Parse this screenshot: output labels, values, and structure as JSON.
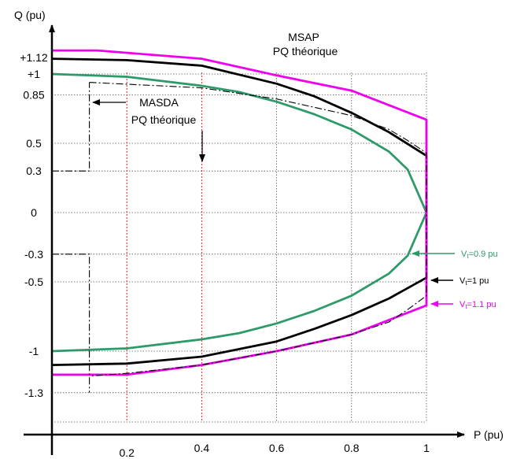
{
  "chart_data": {
    "type": "line",
    "xlabel": "P (pu)",
    "ylabel": "Q (pu)",
    "xlim": [
      0,
      1
    ],
    "ylim": [
      -1.3,
      1.12
    ],
    "x_ticks": [
      {
        "value": 0.2,
        "label": "0.2"
      },
      {
        "value": 0.4,
        "label": "0.4"
      },
      {
        "value": 0.6,
        "label": "0.6"
      },
      {
        "value": 0.8,
        "label": "0.8"
      },
      {
        "value": 1.0,
        "label": "1"
      }
    ],
    "y_ticks": [
      {
        "value": 1.12,
        "label": "+1.12"
      },
      {
        "value": 1.0,
        "label": "+1"
      },
      {
        "value": 0.85,
        "label": "0.85"
      },
      {
        "value": 0.5,
        "label": "0.5"
      },
      {
        "value": 0.3,
        "label": "0.3"
      },
      {
        "value": 0,
        "label": "0"
      },
      {
        "value": -0.3,
        "label": "-0.3"
      },
      {
        "value": -0.5,
        "label": "-0.5"
      },
      {
        "value": -1.0,
        "label": "-1"
      },
      {
        "value": -1.3,
        "label": "-1.3"
      }
    ],
    "grid": "dotted",
    "annotations": {
      "msap_line1": "MSAP",
      "msap_line2": "PQ théorique",
      "masda_line1": "MASDA",
      "masda_line2": "PQ théorique"
    },
    "series": [
      {
        "name": "Vt=0.9 pu",
        "label_text": "V",
        "label_sub": "t",
        "label_rest": "=0.9 pu",
        "color": "#2e9a6a",
        "points": [
          [
            0,
            1.0
          ],
          [
            0.2,
            0.98
          ],
          [
            0.4,
            0.915
          ],
          [
            0.5,
            0.87
          ],
          [
            0.6,
            0.8
          ],
          [
            0.7,
            0.71
          ],
          [
            0.8,
            0.6
          ],
          [
            0.9,
            0.44
          ],
          [
            0.95,
            0.31
          ],
          [
            1.0,
            0
          ],
          [
            0.95,
            -0.31
          ],
          [
            0.9,
            -0.44
          ],
          [
            0.8,
            -0.6
          ],
          [
            0.7,
            -0.71
          ],
          [
            0.6,
            -0.8
          ],
          [
            0.5,
            -0.87
          ],
          [
            0.4,
            -0.915
          ],
          [
            0.2,
            -0.98
          ],
          [
            0,
            -1.0
          ]
        ]
      },
      {
        "name": "Vt=1 pu",
        "label_text": "V",
        "label_sub": "t",
        "label_rest": "=1 pu",
        "color": "#000000",
        "points": [
          [
            0,
            1.11
          ],
          [
            0.2,
            1.1
          ],
          [
            0.4,
            1.06
          ],
          [
            0.6,
            0.93
          ],
          [
            0.7,
            0.84
          ],
          [
            0.8,
            0.72
          ],
          [
            0.9,
            0.58
          ],
          [
            1.0,
            0.41
          ],
          [
            1.0,
            -0.47
          ],
          [
            0.9,
            -0.62
          ],
          [
            0.8,
            -0.74
          ],
          [
            0.7,
            -0.84
          ],
          [
            0.6,
            -0.93
          ],
          [
            0.4,
            -1.04
          ],
          [
            0.2,
            -1.09
          ],
          [
            0,
            -1.1
          ]
        ]
      },
      {
        "name": "Vt=1.1 pu",
        "label_text": "V",
        "label_sub": "t",
        "label_rest": "=1.1 pu",
        "color": "#ee00ee",
        "points": [
          [
            0,
            1.17
          ],
          [
            0.12,
            1.17
          ],
          [
            0.4,
            1.11
          ],
          [
            0.6,
            0.99
          ],
          [
            0.8,
            0.88
          ],
          [
            1.0,
            0.67
          ],
          [
            1.0,
            -0.67
          ],
          [
            0.8,
            -0.88
          ],
          [
            0.6,
            -1.0
          ],
          [
            0.4,
            -1.1
          ],
          [
            0.2,
            -1.17
          ],
          [
            0,
            -1.17
          ]
        ]
      },
      {
        "name": "MASDA",
        "color": "#000000",
        "dash": "dashdot",
        "points": [
          [
            0.1,
            0.94
          ],
          [
            0.4,
            0.9
          ],
          [
            0.6,
            0.82
          ],
          [
            0.8,
            0.7
          ],
          [
            0.9,
            0.6
          ],
          [
            0.95,
            0.52
          ],
          [
            1.0,
            0.43
          ],
          [
            1.0,
            -0.6
          ],
          [
            0.95,
            -0.7
          ],
          [
            0.9,
            -0.79
          ],
          [
            0.8,
            -0.88
          ],
          [
            0.6,
            -1.0
          ],
          [
            0.4,
            -1.1
          ],
          [
            0.2,
            -1.16
          ],
          [
            0.1,
            -1.18
          ]
        ]
      },
      {
        "name": "MASDA-step-upper",
        "color": "#000000",
        "dash": "dashdot",
        "points": [
          [
            0,
            0.3
          ],
          [
            0.1,
            0.3
          ],
          [
            0.1,
            0.94
          ]
        ]
      },
      {
        "name": "MASDA-step-lower",
        "color": "#000000",
        "dash": "dashdot",
        "points": [
          [
            0,
            -0.3
          ],
          [
            0.1,
            -0.3
          ],
          [
            0.1,
            -1.3
          ]
        ]
      }
    ],
    "red_lines": [
      0.2,
      0.4
    ]
  }
}
